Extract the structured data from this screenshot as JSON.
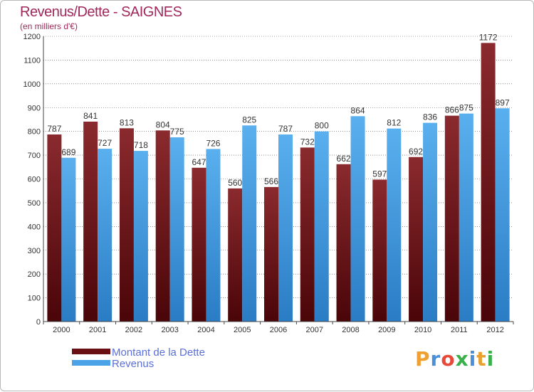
{
  "header": {
    "title": "Revenus/Dette - SAIGNES",
    "subtitle": "(en milliers d'€)"
  },
  "legend": {
    "debt_label": "Montant de la Dette",
    "revenue_label": "Revenus"
  },
  "logo": {
    "text": "Proxiti",
    "letters": [
      "P",
      "r",
      "o",
      "x",
      "i",
      "t",
      "i"
    ],
    "colors": [
      "#f0a030",
      "#4a90d9",
      "#e84a3a",
      "#3ab04a",
      "#4a90d9",
      "#e8a030",
      "#3ab04a"
    ]
  },
  "colors": {
    "debt": "#7a1e22",
    "debt_dark": "#5a0a0e",
    "revenue": "#4aa3e6",
    "revenue_dark": "#2a80c8",
    "grid": "#000000",
    "background": "#ffffff"
  },
  "chart_data": {
    "type": "bar",
    "title": "Revenus/Dette - SAIGNES",
    "subtitle": "(en milliers d'€)",
    "xlabel": "",
    "ylabel": "",
    "categories": [
      "2000",
      "2001",
      "2002",
      "2003",
      "2004",
      "2005",
      "2006",
      "2007",
      "2008",
      "2009",
      "2010",
      "2011",
      "2012"
    ],
    "series": [
      {
        "name": "Montant de la Dette",
        "values": [
          787,
          841,
          813,
          804,
          647,
          560,
          566,
          732,
          662,
          597,
          692,
          866,
          1172
        ]
      },
      {
        "name": "Revenus",
        "values": [
          689,
          727,
          718,
          775,
          726,
          825,
          787,
          800,
          864,
          812,
          836,
          875,
          897
        ]
      }
    ],
    "ylim": [
      0,
      1200
    ],
    "yticks": [
      0,
      100,
      200,
      300,
      400,
      500,
      600,
      700,
      800,
      900,
      1000,
      1100,
      1200
    ],
    "grid": true,
    "legend_position": "bottom-left"
  }
}
